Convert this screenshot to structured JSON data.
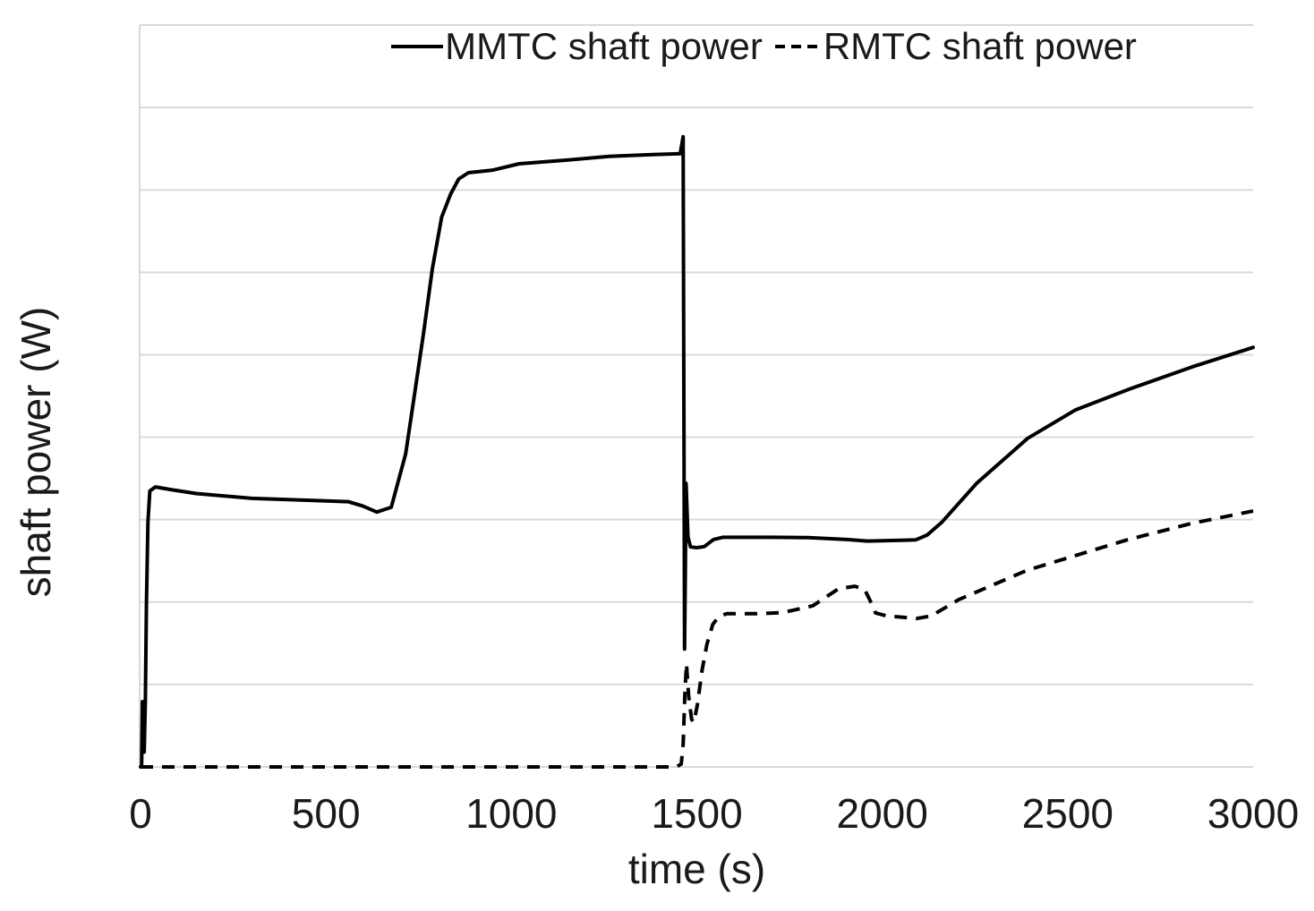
{
  "figure": {
    "background": "#ffffff",
    "text_color": "#1a1a1a",
    "grid_color": "#d9d9d9",
    "line_color": "#000000"
  },
  "legend": {
    "mmtc_label": "MMTC shaft power",
    "rmtc_label": "RMTC shaft power"
  },
  "chart_data": {
    "type": "line",
    "title": "",
    "xlabel": "time (s)",
    "ylabel": "shaft power (W)",
    "x_ticks": [
      0,
      500,
      1000,
      1500,
      2000,
      2500,
      3000
    ],
    "xlim": [
      0,
      3000
    ],
    "ylim": [
      0,
      1
    ],
    "y_axis_note": "no numeric y tick labels shown; values are fraction of axis height",
    "y_gridline_intervals": 9,
    "grid": "horizontal",
    "legend_position": "top-center",
    "series": [
      {
        "name": "MMTC shaft power",
        "style": "solid",
        "color": "#000000",
        "points": [
          [
            0,
            0
          ],
          [
            3,
            0
          ],
          [
            5,
            0.088
          ],
          [
            8,
            0.05
          ],
          [
            10,
            0.02
          ],
          [
            13,
            0.09
          ],
          [
            16,
            0.22
          ],
          [
            20,
            0.33
          ],
          [
            25,
            0.372
          ],
          [
            40,
            0.3775
          ],
          [
            80,
            0.374
          ],
          [
            150,
            0.3685
          ],
          [
            300,
            0.362
          ],
          [
            450,
            0.3595
          ],
          [
            560,
            0.3575
          ],
          [
            600,
            0.3515
          ],
          [
            637,
            0.3435
          ],
          [
            676,
            0.35
          ],
          [
            715,
            0.422
          ],
          [
            739,
            0.503
          ],
          [
            763,
            0.584
          ],
          [
            787,
            0.672
          ],
          [
            812,
            0.741
          ],
          [
            836,
            0.772
          ],
          [
            858,
            0.7925
          ],
          [
            884,
            0.801
          ],
          [
            950,
            0.8045
          ],
          [
            1021,
            0.813
          ],
          [
            1150,
            0.818
          ],
          [
            1263,
            0.823
          ],
          [
            1380,
            0.8255
          ],
          [
            1455,
            0.8265
          ],
          [
            1463,
            0.8495
          ],
          [
            1467,
            0.159
          ],
          [
            1469,
            0.27
          ],
          [
            1471,
            0.382
          ],
          [
            1476,
            0.31
          ],
          [
            1483,
            0.2965
          ],
          [
            1500,
            0.2955
          ],
          [
            1520,
            0.297
          ],
          [
            1545,
            0.3065
          ],
          [
            1570,
            0.3095
          ],
          [
            1700,
            0.3095
          ],
          [
            1800,
            0.309
          ],
          [
            1905,
            0.3065
          ],
          [
            1960,
            0.3045
          ],
          [
            2050,
            0.3055
          ],
          [
            2090,
            0.306
          ],
          [
            2121,
            0.3125
          ],
          [
            2160,
            0.3295
          ],
          [
            2254,
            0.382
          ],
          [
            2392,
            0.443
          ],
          [
            2520,
            0.481
          ],
          [
            2665,
            0.509
          ],
          [
            2834,
            0.539
          ],
          [
            3000,
            0.5655
          ]
        ]
      },
      {
        "name": "RMTC shaft power",
        "style": "dashed",
        "color": "#000000",
        "points": [
          [
            0,
            0
          ],
          [
            1445,
            0
          ],
          [
            1458,
            0.004
          ],
          [
            1463,
            0.03
          ],
          [
            1468,
            0.1
          ],
          [
            1472,
            0.139
          ],
          [
            1478,
            0.095
          ],
          [
            1486,
            0.064
          ],
          [
            1492,
            0.06
          ],
          [
            1502,
            0.085
          ],
          [
            1514,
            0.13
          ],
          [
            1527,
            0.165
          ],
          [
            1543,
            0.192
          ],
          [
            1558,
            0.202
          ],
          [
            1580,
            0.2065
          ],
          [
            1660,
            0.2065
          ],
          [
            1730,
            0.208
          ],
          [
            1812,
            0.217
          ],
          [
            1856,
            0.2315
          ],
          [
            1882,
            0.2402
          ],
          [
            1926,
            0.2435
          ],
          [
            1952,
            0.2395
          ],
          [
            1967,
            0.2245
          ],
          [
            1982,
            0.2075
          ],
          [
            2012,
            0.2035
          ],
          [
            2062,
            0.2015
          ],
          [
            2092,
            0.2
          ],
          [
            2132,
            0.2035
          ],
          [
            2206,
            0.2255
          ],
          [
            2390,
            0.265
          ],
          [
            2660,
            0.306
          ],
          [
            2832,
            0.328
          ],
          [
            3000,
            0.345
          ]
        ]
      }
    ]
  }
}
